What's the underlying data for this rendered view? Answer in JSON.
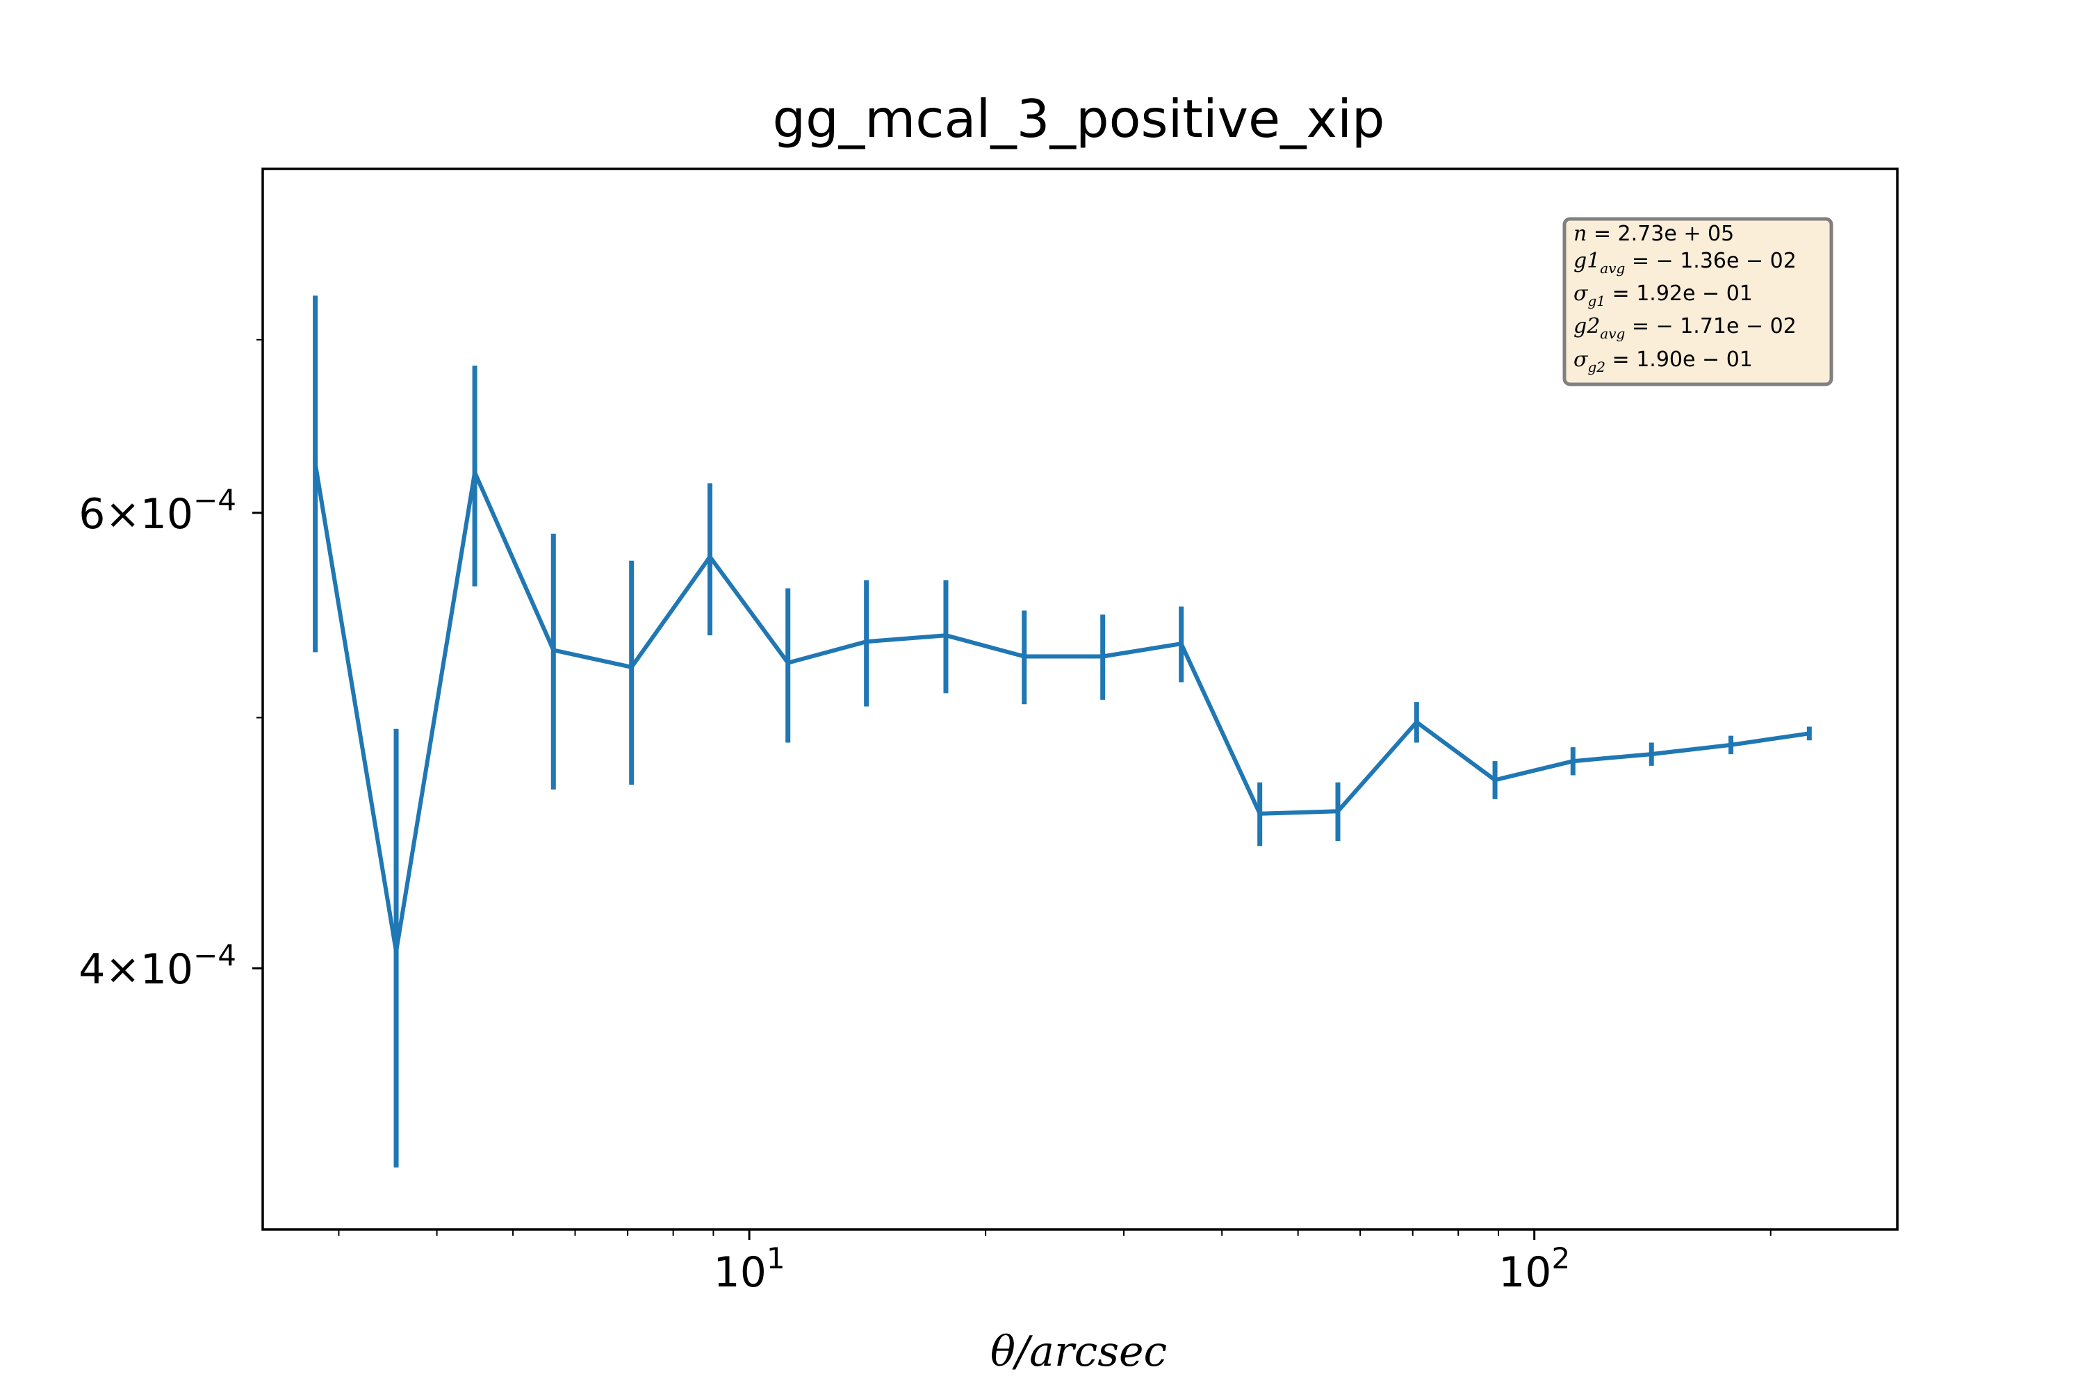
{
  "chart_data": {
    "type": "line",
    "title": "gg_mcal_3_positive_xip",
    "xlabel": "θ/arcsec",
    "ylabel": "",
    "xscale": "log",
    "yscale": "log",
    "xlim": [
      2.4,
      290
    ],
    "ylim": [
      0.000317,
      0.000815
    ],
    "grid": false,
    "color": "#1f77b4",
    "x_ticks": [
      {
        "value": 10,
        "base": "10",
        "exp": "1"
      },
      {
        "value": 100,
        "base": "10",
        "exp": "2"
      }
    ],
    "y_ticks": [
      {
        "value": 0.0004,
        "mant": "4",
        "times": "×",
        "base": "10",
        "exp": "−4"
      },
      {
        "value": 0.0006,
        "mant": "6",
        "times": "×",
        "base": "10",
        "exp": "−4"
      }
    ],
    "x_minor_ticks": [
      3,
      4,
      5,
      6,
      7,
      8,
      9,
      20,
      30,
      40,
      50,
      60,
      70,
      80,
      90,
      200
    ],
    "y_minor_ticks": [
      0.0005,
      0.0007
    ],
    "series": [
      {
        "x": [
          2.8,
          3.55,
          4.47,
          5.63,
          7.08,
          8.91,
          11.2,
          14.1,
          17.8,
          22.4,
          28.2,
          35.5,
          44.7,
          56.2,
          70.8,
          89.1,
          112,
          141,
          178,
          224
        ],
        "y": [
          0.000627,
          0.000406,
          0.000622,
          0.000531,
          0.000523,
          0.000577,
          0.000525,
          0.000535,
          0.000538,
          0.000528,
          0.000528,
          0.000534,
          0.000459,
          0.00046,
          0.000498,
          0.000473,
          0.000481,
          0.000484,
          0.000488,
          0.000493
        ],
        "yerr_low": [
          0.00053,
          0.000335,
          0.000562,
          0.000469,
          0.000471,
          0.000538,
          0.000489,
          0.000505,
          0.000511,
          0.000506,
          0.000508,
          0.000516,
          0.000446,
          0.000448,
          0.000489,
          0.000465,
          0.000475,
          0.000479,
          0.000484,
          0.00049
        ],
        "yerr_high": [
          0.000728,
          0.000495,
          0.000684,
          0.000589,
          0.000575,
          0.000616,
          0.000561,
          0.000565,
          0.000565,
          0.00055,
          0.000548,
          0.000552,
          0.000472,
          0.000472,
          0.000507,
          0.000481,
          0.000487,
          0.000489,
          0.000492,
          0.000496
        ]
      }
    ],
    "annotation_box": {
      "n": {
        "sym": "n",
        "sub": "",
        "val": " = 2.73e + 05"
      },
      "g1_avg": {
        "sym": "g1",
        "sub": "avg",
        "val": " = − 1.36e − 02"
      },
      "sigma_g1": {
        "sym": "σ",
        "sub": "g1",
        "val": " = 1.92e − 01"
      },
      "g2_avg": {
        "sym": "g2",
        "sub": "avg",
        "val": " = − 1.71e − 02"
      },
      "sigma_g2": {
        "sym": "σ",
        "sub": "g2",
        "val": " = 1.90e − 01"
      }
    }
  }
}
